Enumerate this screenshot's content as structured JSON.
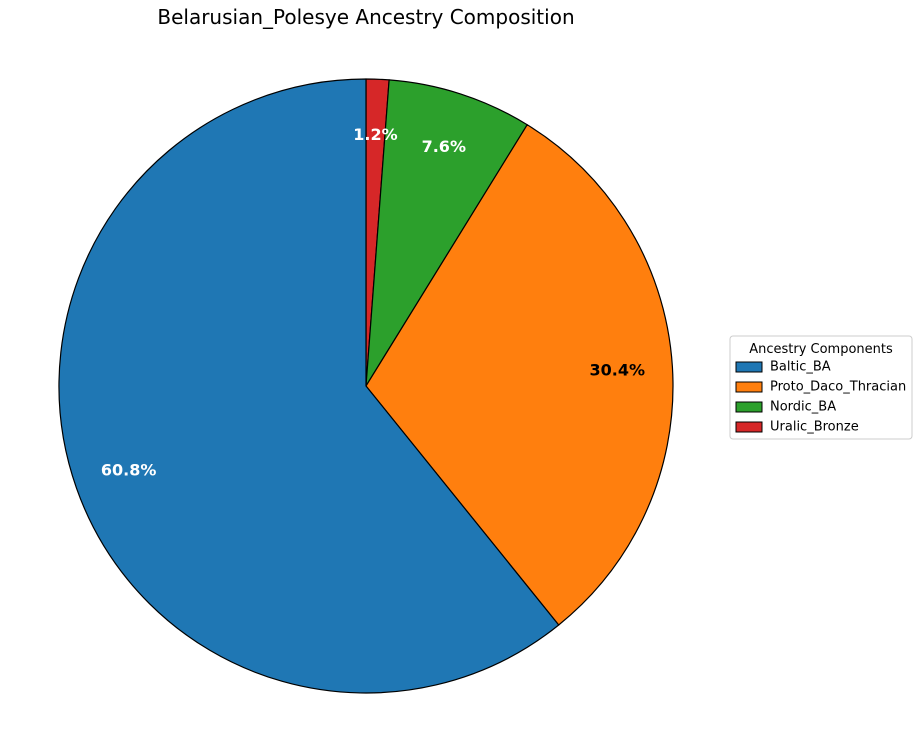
{
  "chart_data": {
    "type": "pie",
    "title": "Belarusian_Polesye Ancestry Composition",
    "start_angle_deg": 90,
    "direction": "clockwise",
    "slices": [
      {
        "label": "Uralic_Bronze",
        "value": 1.2,
        "display": "1.2%",
        "color": "#d62728",
        "label_color": "#ffffff"
      },
      {
        "label": "Nordic_BA",
        "value": 7.6,
        "display": "7.6%",
        "color": "#2ca02c",
        "label_color": "#ffffff"
      },
      {
        "label": "Proto_Daco_Thracian",
        "value": 30.4,
        "display": "30.4%",
        "color": "#ff7f0e",
        "label_color": "#000000"
      },
      {
        "label": "Baltic_BA",
        "value": 60.8,
        "display": "60.8%",
        "color": "#1f77b4",
        "label_color": "#ffffff"
      }
    ],
    "legend": {
      "title": "Ancestry Components",
      "placement": "right",
      "entries": [
        "Baltic_BA",
        "Proto_Daco_Thracian",
        "Nordic_BA",
        "Uralic_Bronze"
      ]
    },
    "edge_color": "#000000"
  }
}
